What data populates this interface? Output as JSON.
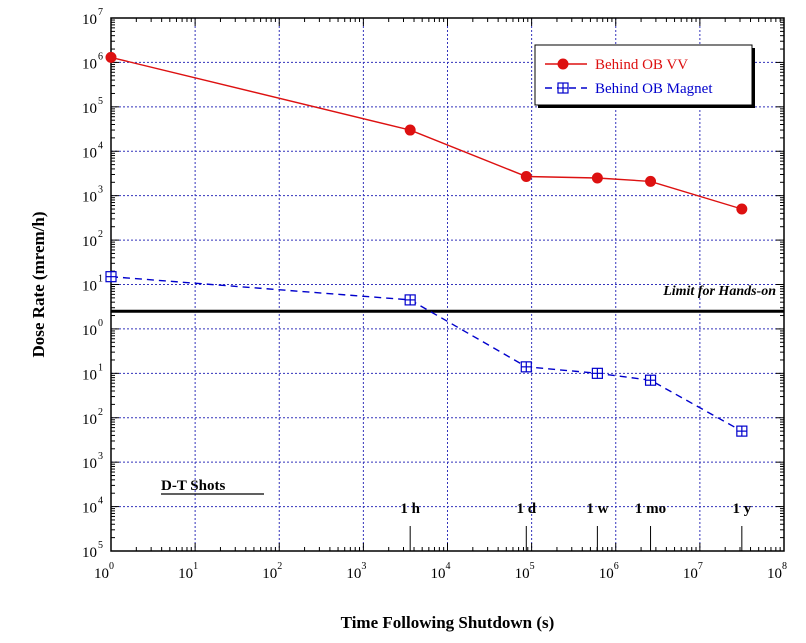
{
  "chart_data": {
    "type": "line",
    "xlabel": "Time Following Shutdown (s)",
    "ylabel": "Dose Rate (mrem/h)",
    "xscale": "log",
    "yscale": "log",
    "xlim": [
      1,
      100000000
    ],
    "ylim": [
      1e-05,
      10000000
    ],
    "grid": true,
    "legend_position": "top-right",
    "x_ticks": [
      {
        "value": 1,
        "base": "10",
        "exp": "0"
      },
      {
        "value": 10,
        "base": "10",
        "exp": "1"
      },
      {
        "value": 100,
        "base": "10",
        "exp": "2"
      },
      {
        "value": 1000,
        "base": "10",
        "exp": "3"
      },
      {
        "value": 10000,
        "base": "10",
        "exp": "4"
      },
      {
        "value": 100000,
        "base": "10",
        "exp": "5"
      },
      {
        "value": 1000000,
        "base": "10",
        "exp": "6"
      },
      {
        "value": 10000000,
        "base": "10",
        "exp": "7"
      },
      {
        "value": 100000000,
        "base": "10",
        "exp": "8"
      }
    ],
    "y_ticks": [
      {
        "value": 1e-05,
        "base": "10",
        "exp": "5"
      },
      {
        "value": 0.0001,
        "base": "10",
        "exp": "4"
      },
      {
        "value": 0.001,
        "base": "10",
        "exp": "3"
      },
      {
        "value": 0.01,
        "base": "10",
        "exp": "2"
      },
      {
        "value": 0.1,
        "base": "10",
        "exp": "1"
      },
      {
        "value": 1,
        "base": "10",
        "exp": "0"
      },
      {
        "value": 10,
        "base": "10",
        "exp": "1"
      },
      {
        "value": 100,
        "base": "10",
        "exp": "2"
      },
      {
        "value": 1000,
        "base": "10",
        "exp": "3"
      },
      {
        "value": 10000,
        "base": "10",
        "exp": "4"
      },
      {
        "value": 100000,
        "base": "10",
        "exp": "5"
      },
      {
        "value": 1000000,
        "base": "10",
        "exp": "6"
      },
      {
        "value": 10000000,
        "base": "10",
        "exp": "7"
      }
    ],
    "series": [
      {
        "name": "Behind OB VV",
        "color": "#dd1111",
        "line_style": "solid",
        "marker": "filled-circle",
        "x": [
          1,
          3600,
          86400,
          604800,
          2592000,
          31536000
        ],
        "y": [
          1300000,
          30000,
          2700,
          2500,
          2100,
          500
        ]
      },
      {
        "name": "Behind OB Magnet",
        "color": "#0000cc",
        "line_style": "dashed",
        "marker": "boxed-plus",
        "x": [
          1,
          3600,
          86400,
          604800,
          2592000,
          31536000
        ],
        "y": [
          15,
          4.5,
          0.14,
          0.1,
          0.07,
          0.005
        ]
      }
    ],
    "reference_line": {
      "y": 2.5,
      "label": "Limit for Hands-on",
      "color": "#000000"
    },
    "time_markers": [
      {
        "x": 3600,
        "label": "1 h"
      },
      {
        "x": 86400,
        "label": "1 d"
      },
      {
        "x": 604800,
        "label": "1 w"
      },
      {
        "x": 2592000,
        "label": "1 mo"
      },
      {
        "x": 31536000,
        "label": "1 y"
      }
    ],
    "annotation": "D-T Shots",
    "grid_color": "#3333bb"
  }
}
